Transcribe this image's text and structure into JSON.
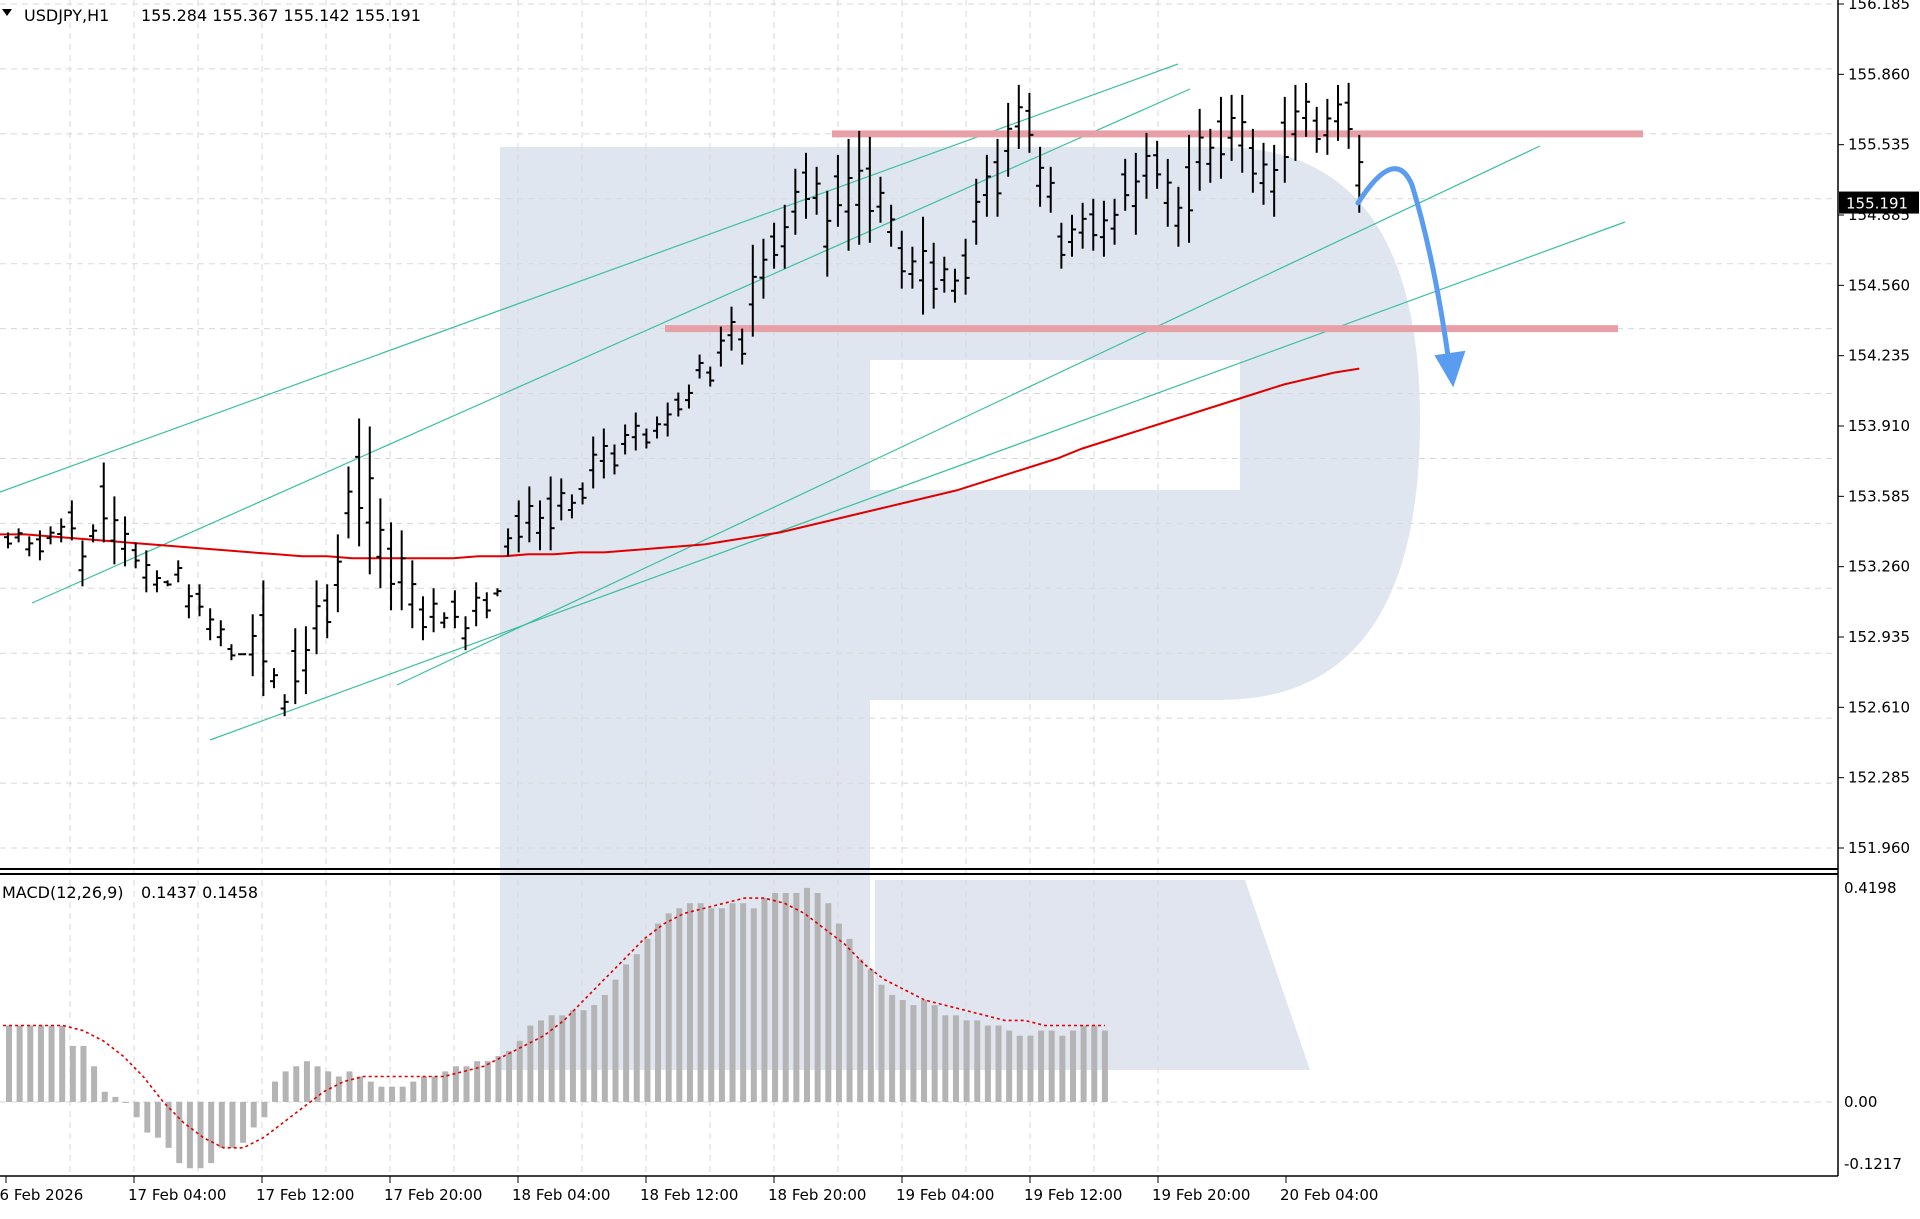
{
  "header": {
    "symbol": "USDJPY,H1",
    "ohlc": "155.284 155.367 155.142 155.191",
    "indicator": "MACD(12,26,9)",
    "indicator_values": "0.1437 0.1458"
  },
  "price_axis": {
    "labels": [
      "156.185",
      "155.860",
      "155.535",
      "155.191",
      "154.885",
      "154.560",
      "154.235",
      "153.910",
      "153.585",
      "153.260",
      "152.935",
      "152.610",
      "152.285",
      "151.960"
    ],
    "current": "155.191"
  },
  "macd_axis": {
    "labels": [
      "0.4198",
      "0.00",
      "-0.1217"
    ]
  },
  "time_axis": {
    "labels": [
      "16 Feb 2026",
      "17 Feb 04:00",
      "17 Feb 12:00",
      "17 Feb 20:00",
      "18 Feb 04:00",
      "18 Feb 12:00",
      "18 Feb 20:00",
      "19 Feb 04:00",
      "19 Feb 12:00",
      "19 Feb 20:00",
      "20 Feb 04:00"
    ]
  },
  "colors": {
    "bar": "#000000",
    "ma": "#e00000",
    "trendline": "#3cbfa0",
    "level": "#e8a0a8",
    "forecast": "#5a9cf0",
    "histogram": "#b4b4b4",
    "signal": "#e00000",
    "watermark": "#dde3ee",
    "grid": "#d8d8d8"
  },
  "chart_data": [
    {
      "type": "ohlc",
      "title": "USDJPY,H1",
      "y_range": [
        151.96,
        156.185
      ],
      "bars_high": [
        153.54,
        153.56,
        153.52,
        153.55,
        153.57,
        153.61,
        153.7,
        153.5,
        153.58,
        153.89,
        153.72,
        153.62,
        153.49,
        153.45,
        153.35,
        153.3,
        153.4,
        153.28,
        153.28,
        153.16,
        153.1,
        152.98,
        152.93,
        153.13,
        153.3,
        152.86,
        152.73,
        153.06,
        153.07,
        153.3,
        153.28,
        153.53,
        153.87,
        154.11,
        154.07,
        153.71,
        153.59,
        153.55,
        153.4,
        153.22,
        153.26,
        153.14,
        153.25,
        153.12,
        153.29,
        153.24,
        153.26,
        153.56,
        153.7,
        153.77,
        153.7,
        153.82,
        153.81,
        153.73,
        153.79,
        154.02,
        154.06,
        153.98,
        154.08,
        154.14,
        154.06,
        154.12,
        154.19,
        154.24,
        154.28,
        154.43,
        154.37,
        154.57,
        154.67,
        154.56,
        154.98,
        155.01,
        155.09,
        155.18,
        155.36,
        155.44,
        155.37,
        155.25,
        155.43,
        155.51,
        155.55,
        155.52,
        155.32,
        155.18,
        155.05,
        154.97,
        155.12,
        154.99,
        154.92,
        154.86,
        155.01,
        155.31,
        155.43,
        155.51,
        155.69,
        155.78,
        155.74,
        155.47,
        155.37,
        155.09,
        155.13,
        155.19,
        155.21,
        155.2,
        155.21,
        155.41,
        155.44,
        155.54,
        155.5,
        155.41,
        155.27,
        155.53,
        155.66,
        155.56,
        155.72,
        155.73,
        155.73,
        155.56,
        155.49,
        155.48,
        155.72,
        155.78,
        155.79,
        155.67,
        155.71,
        155.78,
        155.79,
        155.53
      ],
      "bars_low": [
        153.46,
        153.49,
        153.42,
        153.4,
        153.48,
        153.49,
        153.5,
        153.27,
        153.49,
        153.49,
        153.38,
        153.37,
        153.36,
        153.24,
        153.24,
        153.27,
        153.29,
        153.11,
        153.12,
        153.0,
        152.97,
        152.9,
        152.93,
        152.82,
        152.72,
        152.76,
        152.62,
        152.68,
        152.73,
        152.93,
        153.01,
        153.14,
        153.51,
        153.47,
        153.33,
        153.26,
        153.15,
        153.15,
        153.06,
        153.0,
        153.04,
        153.06,
        153.06,
        152.95,
        153.07,
        153.11,
        153.22,
        153.42,
        153.44,
        153.49,
        153.45,
        153.45,
        153.6,
        153.61,
        153.68,
        153.76,
        153.81,
        153.83,
        153.93,
        153.95,
        153.96,
        154.01,
        154.02,
        154.12,
        154.16,
        154.31,
        154.27,
        154.37,
        154.45,
        154.38,
        154.52,
        154.71,
        154.86,
        154.86,
        155.03,
        155.11,
        155.13,
        154.82,
        155.07,
        154.95,
        154.98,
        154.99,
        155.09,
        154.97,
        154.76,
        154.76,
        154.63,
        154.66,
        154.74,
        154.69,
        154.73,
        154.98,
        155.12,
        155.12,
        155.32,
        155.46,
        155.44,
        155.17,
        155.14,
        154.86,
        154.92,
        154.96,
        154.95,
        154.92,
        154.98,
        155.15,
        155.03,
        155.21,
        155.26,
        155.07,
        154.97,
        154.99,
        155.25,
        155.29,
        155.31,
        155.4,
        155.34,
        155.24,
        155.18,
        155.12,
        155.29,
        155.4,
        155.52,
        155.44,
        155.43,
        155.5,
        155.46,
        155.14
      ],
      "current_close": 155.191,
      "moving_average": [
        153.53,
        153.53,
        153.52,
        153.51,
        153.5,
        153.49,
        153.48,
        153.47,
        153.46,
        153.45,
        153.44,
        153.43,
        153.42,
        153.42,
        153.41,
        153.41,
        153.41,
        153.41,
        153.41,
        153.42,
        153.42,
        153.43,
        153.43,
        153.44,
        153.44,
        153.45,
        153.46,
        153.47,
        153.48,
        153.5,
        153.52,
        153.54,
        153.57,
        153.6,
        153.63,
        153.66,
        153.69,
        153.72,
        153.75,
        153.79,
        153.83,
        153.87,
        153.91,
        153.96,
        154.0,
        154.04,
        154.08,
        154.12,
        154.16,
        154.2,
        154.24,
        154.28,
        154.31,
        154.34,
        154.36
      ],
      "support_resistance": [
        155.535,
        154.56
      ],
      "forecast": "down"
    },
    {
      "type": "bar",
      "title": "MACD(12,26,9)",
      "y_range": [
        -0.1217,
        0.4198
      ],
      "histogram": [
        0.15,
        0.15,
        0.15,
        0.15,
        0.15,
        0.15,
        0.11,
        0.11,
        0.07,
        0.02,
        0.01,
        0.0,
        -0.03,
        -0.06,
        -0.07,
        -0.09,
        -0.12,
        -0.13,
        -0.13,
        -0.12,
        -0.09,
        -0.09,
        -0.08,
        -0.05,
        -0.03,
        0.04,
        0.06,
        0.07,
        0.08,
        0.07,
        0.06,
        0.05,
        0.06,
        0.05,
        0.04,
        0.03,
        0.03,
        0.03,
        0.04,
        0.05,
        0.05,
        0.06,
        0.07,
        0.07,
        0.08,
        0.08,
        0.09,
        0.1,
        0.12,
        0.15,
        0.16,
        0.17,
        0.17,
        0.18,
        0.18,
        0.19,
        0.21,
        0.24,
        0.27,
        0.29,
        0.32,
        0.35,
        0.37,
        0.38,
        0.39,
        0.39,
        0.38,
        0.38,
        0.39,
        0.39,
        0.38,
        0.4,
        0.41,
        0.41,
        0.41,
        0.42,
        0.41,
        0.39,
        0.35,
        0.32,
        0.28,
        0.26,
        0.23,
        0.21,
        0.2,
        0.19,
        0.2,
        0.19,
        0.17,
        0.17,
        0.16,
        0.16,
        0.15,
        0.15,
        0.14,
        0.13,
        0.13,
        0.14,
        0.14,
        0.13,
        0.14,
        0.15,
        0.15,
        0.14
      ],
      "signal": [
        0.15,
        0.15,
        0.15,
        0.15,
        0.14,
        0.12,
        0.09,
        0.05,
        0.0,
        -0.04,
        -0.07,
        -0.09,
        -0.09,
        -0.07,
        -0.04,
        -0.01,
        0.02,
        0.04,
        0.05,
        0.05,
        0.05,
        0.05,
        0.05,
        0.06,
        0.07,
        0.09,
        0.11,
        0.13,
        0.16,
        0.2,
        0.24,
        0.28,
        0.32,
        0.35,
        0.37,
        0.38,
        0.39,
        0.4,
        0.4,
        0.39,
        0.37,
        0.34,
        0.31,
        0.27,
        0.24,
        0.22,
        0.2,
        0.19,
        0.18,
        0.17,
        0.16,
        0.16,
        0.15,
        0.15,
        0.15,
        0.15
      ]
    }
  ]
}
